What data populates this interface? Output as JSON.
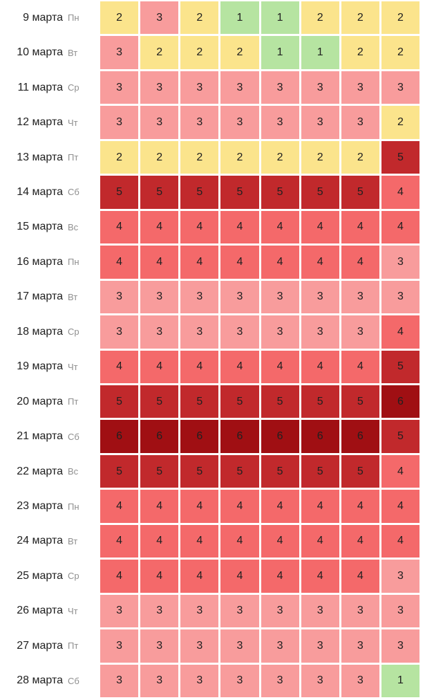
{
  "chart_data": {
    "type": "heatmap",
    "title": "",
    "xlabel": "",
    "ylabel": "",
    "columns_count": 8,
    "column_headers": [],
    "legend_position": "none",
    "grid": "white 3px gaps between cells",
    "value_colors": {
      "1": "#b6e4a1",
      "2": "#fbe48c",
      "3": "#f89c9c",
      "4": "#f4696a",
      "5": "#c1292c",
      "6": "#a00f13"
    },
    "cell_text_color": "#202020",
    "date_text_color": "#1e1e1e",
    "weekday_text_color": "#8f8f8f",
    "rows": [
      {
        "date": "9 марта",
        "weekday": "Пн",
        "values": [
          2,
          3,
          2,
          1,
          1,
          2,
          2,
          2
        ]
      },
      {
        "date": "10 марта",
        "weekday": "Вт",
        "values": [
          3,
          2,
          2,
          2,
          1,
          1,
          2,
          2
        ]
      },
      {
        "date": "11 марта",
        "weekday": "Ср",
        "values": [
          3,
          3,
          3,
          3,
          3,
          3,
          3,
          3
        ]
      },
      {
        "date": "12 марта",
        "weekday": "Чт",
        "values": [
          3,
          3,
          3,
          3,
          3,
          3,
          3,
          2
        ]
      },
      {
        "date": "13 марта",
        "weekday": "Пт",
        "values": [
          2,
          2,
          2,
          2,
          2,
          2,
          2,
          5
        ]
      },
      {
        "date": "14 марта",
        "weekday": "Сб",
        "values": [
          5,
          5,
          5,
          5,
          5,
          5,
          5,
          4
        ]
      },
      {
        "date": "15 марта",
        "weekday": "Вс",
        "values": [
          4,
          4,
          4,
          4,
          4,
          4,
          4,
          4
        ]
      },
      {
        "date": "16 марта",
        "weekday": "Пн",
        "values": [
          4,
          4,
          4,
          4,
          4,
          4,
          4,
          3
        ]
      },
      {
        "date": "17 марта",
        "weekday": "Вт",
        "values": [
          3,
          3,
          3,
          3,
          3,
          3,
          3,
          3
        ]
      },
      {
        "date": "18 марта",
        "weekday": "Ср",
        "values": [
          3,
          3,
          3,
          3,
          3,
          3,
          3,
          4
        ]
      },
      {
        "date": "19 марта",
        "weekday": "Чт",
        "values": [
          4,
          4,
          4,
          4,
          4,
          4,
          4,
          5
        ]
      },
      {
        "date": "20 марта",
        "weekday": "Пт",
        "values": [
          5,
          5,
          5,
          5,
          5,
          5,
          5,
          6
        ]
      },
      {
        "date": "21 марта",
        "weekday": "Сб",
        "values": [
          6,
          6,
          6,
          6,
          6,
          6,
          6,
          5
        ]
      },
      {
        "date": "22 марта",
        "weekday": "Вс",
        "values": [
          5,
          5,
          5,
          5,
          5,
          5,
          5,
          4
        ]
      },
      {
        "date": "23 марта",
        "weekday": "Пн",
        "values": [
          4,
          4,
          4,
          4,
          4,
          4,
          4,
          4
        ]
      },
      {
        "date": "24 марта",
        "weekday": "Вт",
        "values": [
          4,
          4,
          4,
          4,
          4,
          4,
          4,
          4
        ]
      },
      {
        "date": "25 марта",
        "weekday": "Ср",
        "values": [
          4,
          4,
          4,
          4,
          4,
          4,
          4,
          3
        ]
      },
      {
        "date": "26 марта",
        "weekday": "Чт",
        "values": [
          3,
          3,
          3,
          3,
          3,
          3,
          3,
          3
        ]
      },
      {
        "date": "27 марта",
        "weekday": "Пт",
        "values": [
          3,
          3,
          3,
          3,
          3,
          3,
          3,
          3
        ]
      },
      {
        "date": "28 марта",
        "weekday": "Сб",
        "values": [
          3,
          3,
          3,
          3,
          3,
          3,
          3,
          1
        ]
      }
    ]
  }
}
